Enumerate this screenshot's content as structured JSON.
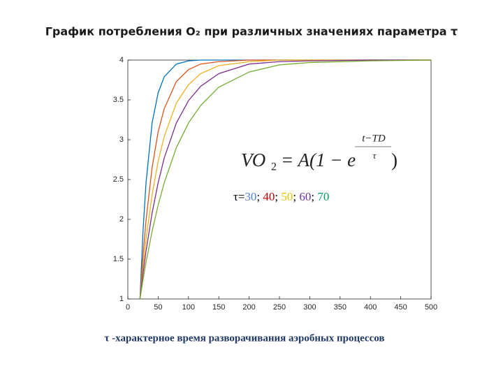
{
  "chart_data": {
    "type": "line",
    "title": "График потребления O₂ при различных значениях параметра τ",
    "x": [
      20,
      25,
      30,
      40,
      50,
      60,
      80,
      100,
      120,
      150,
      200,
      250,
      300,
      400,
      500
    ],
    "series": [
      {
        "color": "#0072bd",
        "values": [
          1,
          1.85,
          2.46,
          3.21,
          3.59,
          3.79,
          3.95,
          3.99,
          4,
          4,
          4,
          4,
          4,
          4,
          4
        ]
      },
      {
        "color": "#d95319",
        "values": [
          1,
          1.54,
          1.99,
          2.65,
          3.1,
          3.39,
          3.73,
          3.88,
          3.95,
          3.98,
          4,
          4,
          4,
          4,
          4
        ]
      },
      {
        "color": "#edb120",
        "values": [
          1,
          1.4,
          1.75,
          2.31,
          2.73,
          3.04,
          3.46,
          3.69,
          3.83,
          3.93,
          3.98,
          4,
          4,
          4,
          4
        ]
      },
      {
        "color": "#7e2f8e",
        "values": [
          1,
          1.32,
          1.6,
          2.08,
          2.46,
          2.77,
          3.21,
          3.49,
          3.67,
          3.83,
          3.95,
          3.98,
          3.99,
          4,
          4
        ]
      },
      {
        "color": "#77ac30",
        "values": [
          1,
          1.24,
          1.46,
          1.85,
          2.18,
          2.46,
          2.9,
          3.21,
          3.43,
          3.66,
          3.85,
          3.94,
          3.97,
          3.99,
          4
        ]
      }
    ],
    "xlim": [
      0,
      500
    ],
    "xticks": [
      0,
      50,
      100,
      150,
      200,
      250,
      300,
      350,
      400,
      450,
      500
    ],
    "ylim": [
      1,
      4
    ],
    "yticks": [
      1,
      1.5,
      2,
      2.5,
      3,
      3.5,
      4
    ],
    "formula": {
      "lhs": "VO",
      "sub": "2",
      "rhs": "= A(1 − e",
      "exp_num": "t−TD",
      "exp_den": "τ",
      "close": ")"
    },
    "tau_label": {
      "prefix": "τ=",
      "separator": "; ",
      "values": [
        30,
        40,
        50,
        60,
        70
      ],
      "colors": [
        "#4f7fd0",
        "#c00000",
        "#e6c200",
        "#7030a0",
        "#00a060"
      ]
    },
    "footnote": "τ -характерное время разворачивания аэробных процессов"
  }
}
